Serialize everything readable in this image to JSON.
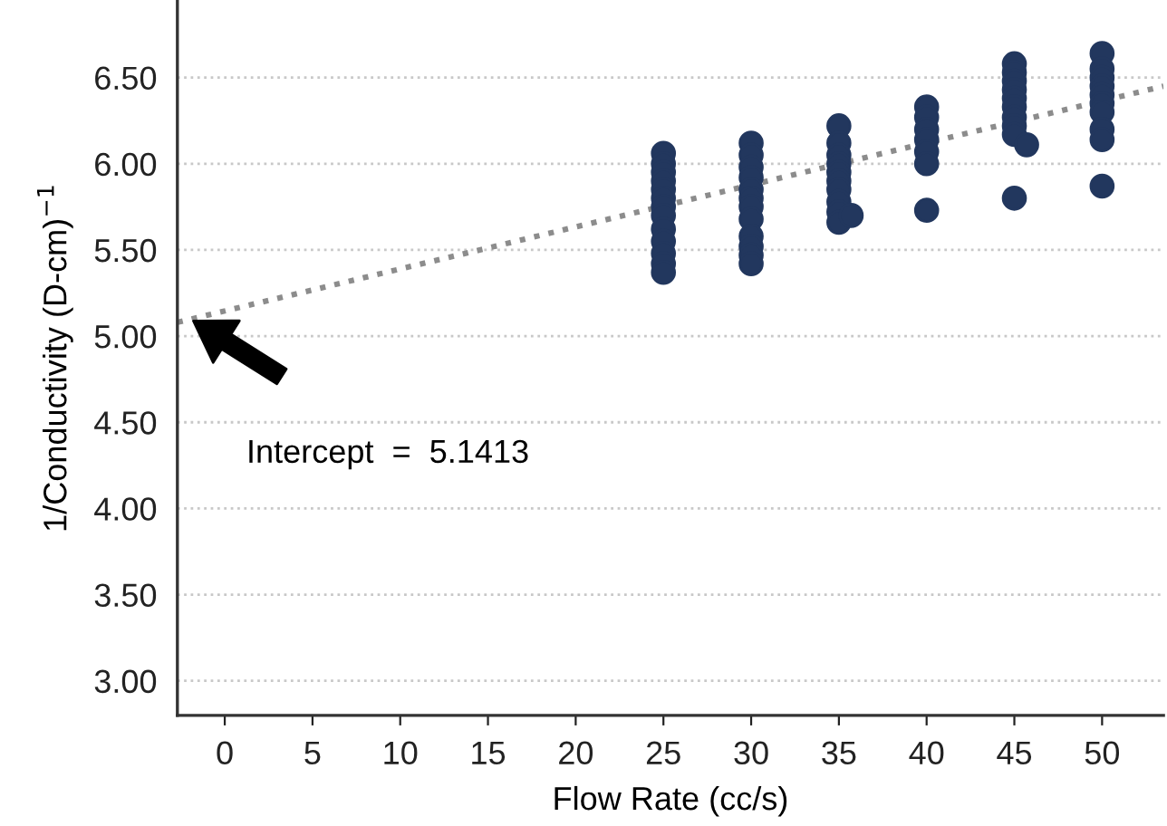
{
  "chart_data": {
    "type": "scatter",
    "xlabel": "Flow Rate (cc/s)",
    "ylabel": "1/Conductivity (D-cm)$^{−1}$",
    "xlim": [
      -2.7,
      53.5
    ],
    "xticks": [
      0,
      5,
      10,
      15,
      20,
      25,
      30,
      35,
      40,
      45,
      50
    ],
    "ylim": [
      2.8,
      6.95
    ],
    "yticks": [
      {
        "value": 3,
        "label": "3.00"
      },
      {
        "value": 3.5,
        "label": "3.50"
      },
      {
        "value": 4,
        "label": "4.00"
      },
      {
        "value": 4.5,
        "label": "4.50"
      },
      {
        "value": 5,
        "label": "5.00"
      },
      {
        "value": 5.5,
        "label": "5.50"
      },
      {
        "value": 6,
        "label": "6.00"
      },
      {
        "value": 6.5,
        "label": "6.50"
      }
    ],
    "grid": "y",
    "legend": false,
    "marker": "circle",
    "series": [
      {
        "color": "#22375e",
        "x": [
          25,
          25,
          25,
          25,
          25,
          25,
          25,
          25,
          25,
          25,
          25,
          25,
          25,
          30,
          30,
          30,
          30,
          30,
          30,
          30,
          30,
          30,
          30,
          30,
          30,
          35,
          35,
          35,
          35,
          35,
          35,
          35,
          35,
          35,
          35,
          35.7,
          40,
          40,
          40,
          40,
          40,
          40,
          40,
          45,
          45,
          45,
          45,
          45,
          45,
          45,
          45,
          45,
          45.7,
          45,
          50,
          50,
          50,
          50,
          50,
          50,
          50,
          50,
          50,
          50
        ],
        "values": [
          6.06,
          6.0,
          5.95,
          5.9,
          5.85,
          5.8,
          5.75,
          5.7,
          5.62,
          5.55,
          5.48,
          5.42,
          5.37,
          6.12,
          6.05,
          5.98,
          5.92,
          5.85,
          5.8,
          5.75,
          5.68,
          5.58,
          5.52,
          5.47,
          5.42,
          6.22,
          6.12,
          6.05,
          6.0,
          5.95,
          5.9,
          5.85,
          5.78,
          5.72,
          5.66,
          5.7,
          6.33,
          6.27,
          6.2,
          6.14,
          6.07,
          6.0,
          5.73,
          6.58,
          6.53,
          6.48,
          6.43,
          6.38,
          6.33,
          6.27,
          6.22,
          6.17,
          6.11,
          5.8,
          6.64,
          6.55,
          6.5,
          6.45,
          6.4,
          6.35,
          6.3,
          6.2,
          6.14,
          5.87
        ]
      },
      {
        "type": "line",
        "color": "#8c8c8c",
        "line_style": "dotted",
        "marker": "none",
        "x": [
          -2.7,
          53.5
        ],
        "values": [
          5.08,
          6.45
        ]
      }
    ],
    "annotations": [
      "Intercept  =  5.1413"
    ]
  }
}
